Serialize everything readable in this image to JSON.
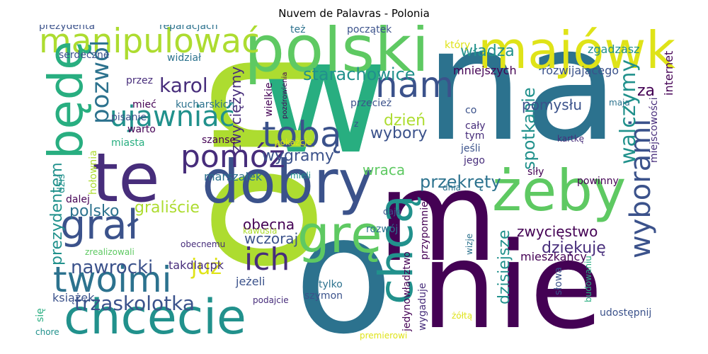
{
  "title": "Nuvem de Palavras - Polonia",
  "colors": {
    "dark_purple": "#440154",
    "indigo": "#472d7b",
    "blue_purple": "#3b528b",
    "slate_blue": "#2c728e",
    "teal": "#21918c",
    "green_teal": "#28ae80",
    "green": "#5ec962",
    "lime": "#addc30",
    "yellow": "#dfe318"
  },
  "words": [
    {
      "text": "na",
      "color": "#2c728e"
    },
    {
      "text": "w",
      "color": "#28ae80"
    },
    {
      "text": "o",
      "color": "#2c728e"
    },
    {
      "text": "m",
      "color": "#440154"
    },
    {
      "text": "nie",
      "color": "#440154"
    },
    {
      "text": "on",
      "color": "#addc30"
    },
    {
      "text": "polski",
      "color": "#5ec962"
    },
    {
      "text": "te",
      "color": "#472d7b"
    },
    {
      "text": "dobry",
      "color": "#3b528b"
    },
    {
      "text": "majówkę",
      "color": "#dfe318"
    },
    {
      "text": "żeby",
      "color": "#5ec962"
    },
    {
      "text": "chcecie",
      "color": "#21918c"
    },
    {
      "text": "manipulować",
      "color": "#addc30"
    },
    {
      "text": "będę",
      "color": "#28ae80"
    },
    {
      "text": "tobą",
      "color": "#3b528b"
    },
    {
      "text": "grę",
      "color": "#5ec962"
    },
    {
      "text": "chcą",
      "color": "#21918c"
    },
    {
      "text": "grał",
      "color": "#3b528b"
    },
    {
      "text": "twoimi",
      "color": "#2c728e"
    },
    {
      "text": "nam",
      "color": "#3b528b"
    },
    {
      "text": "pomóż",
      "color": "#472d7b"
    },
    {
      "text": "ujawniać",
      "color": "#21918c"
    },
    {
      "text": "pozwól",
      "color": "#2c728e"
    },
    {
      "text": "wyborami",
      "color": "#3b528b"
    },
    {
      "text": "ich",
      "color": "#472d7b"
    },
    {
      "text": "trzaskolotka",
      "color": "#3b528b"
    },
    {
      "text": "starachowice",
      "color": "#21918c"
    },
    {
      "text": "wygramy",
      "color": "#3b528b"
    },
    {
      "text": "walczymy",
      "color": "#21918c"
    },
    {
      "text": "spotkanie",
      "color": "#21918c"
    },
    {
      "text": "karol",
      "color": "#472d7b"
    },
    {
      "text": "przekręty",
      "color": "#2c728e"
    },
    {
      "text": "nawrocki",
      "color": "#3b528b"
    },
    {
      "text": "zwycięstwo",
      "color": "#440154"
    },
    {
      "text": "dziękuję",
      "color": "#472d7b"
    },
    {
      "text": "już",
      "color": "#dfe318"
    },
    {
      "text": "władza",
      "color": "#21918c"
    },
    {
      "text": "dzień",
      "color": "#addc30"
    },
    {
      "text": "wybory",
      "color": "#3b528b"
    },
    {
      "text": "polsko",
      "color": "#2c728e"
    },
    {
      "text": "graliście",
      "color": "#addc30"
    },
    {
      "text": "obecna",
      "color": "#440154"
    },
    {
      "text": "wraca",
      "color": "#5ec962"
    },
    {
      "text": "za",
      "color": "#440154"
    },
    {
      "text": "prezydentem",
      "color": "#21918c"
    },
    {
      "text": "zwyciężymy",
      "color": "#472d7b"
    },
    {
      "text": "dzisiejsze",
      "color": "#21918c"
    },
    {
      "text": "pomysłu",
      "color": "#3b528b"
    },
    {
      "text": "wczoraj",
      "color": "#3b528b"
    },
    {
      "text": "mieszkańcy",
      "color": "#440154"
    },
    {
      "text": "marszałek",
      "color": "#2c728e"
    },
    {
      "text": "książek",
      "color": "#3b528b"
    },
    {
      "text": "mniejszych",
      "color": "#440154"
    },
    {
      "text": "rozwijającego",
      "color": "#3b528b"
    },
    {
      "text": "internet",
      "color": "#440154"
    },
    {
      "text": "miejscowości",
      "color": "#472d7b"
    },
    {
      "text": "zgadzasz",
      "color": "#21918c"
    },
    {
      "text": "początek",
      "color": "#3b528b"
    },
    {
      "text": "też",
      "color": "#2c728e"
    },
    {
      "text": "prezydenta",
      "color": "#3b528b"
    },
    {
      "text": "reparacjach",
      "color": "#2c728e"
    },
    {
      "text": "serdeczne",
      "color": "#3b528b"
    },
    {
      "text": "który",
      "color": "#dfe318"
    },
    {
      "text": "widział",
      "color": "#2c728e"
    },
    {
      "text": "przez",
      "color": "#472d7b"
    },
    {
      "text": "mieć",
      "color": "#440154"
    },
    {
      "text": "kucharskich",
      "color": "#2c728e"
    },
    {
      "text": "pisanie",
      "color": "#3b528b"
    },
    {
      "text": "warto",
      "color": "#440154"
    },
    {
      "text": "miasta",
      "color": "#28ae80"
    },
    {
      "text": "dziś",
      "color": "#21918c"
    },
    {
      "text": "hołownia",
      "color": "#addc30"
    },
    {
      "text": "dalej",
      "color": "#440154"
    },
    {
      "text": "szansę",
      "color": "#440154"
    },
    {
      "text": "pokażcie",
      "color": "#dfe318"
    },
    {
      "text": "mieli",
      "color": "#21918c"
    },
    {
      "text": "wielkie",
      "color": "#440154"
    },
    {
      "text": "pozdrowienia",
      "color": "#440154"
    },
    {
      "text": "przecież",
      "color": "#3b528b"
    },
    {
      "text": "co",
      "color": "#3b528b"
    },
    {
      "text": "cały",
      "color": "#472d7b"
    },
    {
      "text": "tym",
      "color": "#472d7b"
    },
    {
      "text": "jeśli",
      "color": "#3b528b"
    },
    {
      "text": "jego",
      "color": "#472d7b"
    },
    {
      "text": "z",
      "color": "#3b528b"
    },
    {
      "text": "siły",
      "color": "#440154"
    },
    {
      "text": "kartkę",
      "color": "#472d7b"
    },
    {
      "text": "maja",
      "color": "#2c728e"
    },
    {
      "text": "powinny",
      "color": "#440154"
    },
    {
      "text": "dnia",
      "color": "#2c728e"
    },
    {
      "text": "daje",
      "color": "#3b528b"
    },
    {
      "text": "przypomnieć",
      "color": "#440154"
    },
    {
      "text": "wizje",
      "color": "#2c728e"
    },
    {
      "text": "rozwój",
      "color": "#2c728e"
    },
    {
      "text": "kawusia",
      "color": "#addc30"
    },
    {
      "text": "obecnemu",
      "color": "#472d7b"
    },
    {
      "text": "zrealizowali",
      "color": "#5ec962"
    },
    {
      "text": "takdlacpk",
      "color": "#472d7b"
    },
    {
      "text": "jeżeli",
      "color": "#3b528b"
    },
    {
      "text": "podajcie",
      "color": "#472d7b"
    },
    {
      "text": "tylko",
      "color": "#2c728e"
    },
    {
      "text": "szymon",
      "color": "#3b528b"
    },
    {
      "text": "wygaduje",
      "color": "#472d7b"
    },
    {
      "text": "jedynowładztwo",
      "color": "#440154"
    },
    {
      "text": "premierowi",
      "color": "#dfe318"
    },
    {
      "text": "żółtą",
      "color": "#dfe318"
    },
    {
      "text": "słowa",
      "color": "#3b528b"
    },
    {
      "text": "budowaniu",
      "color": "#28ae80"
    },
    {
      "text": "udostępnij",
      "color": "#3b528b"
    },
    {
      "text": "się",
      "color": "#28ae80"
    },
    {
      "text": "chore",
      "color": "#21918c"
    }
  ]
}
